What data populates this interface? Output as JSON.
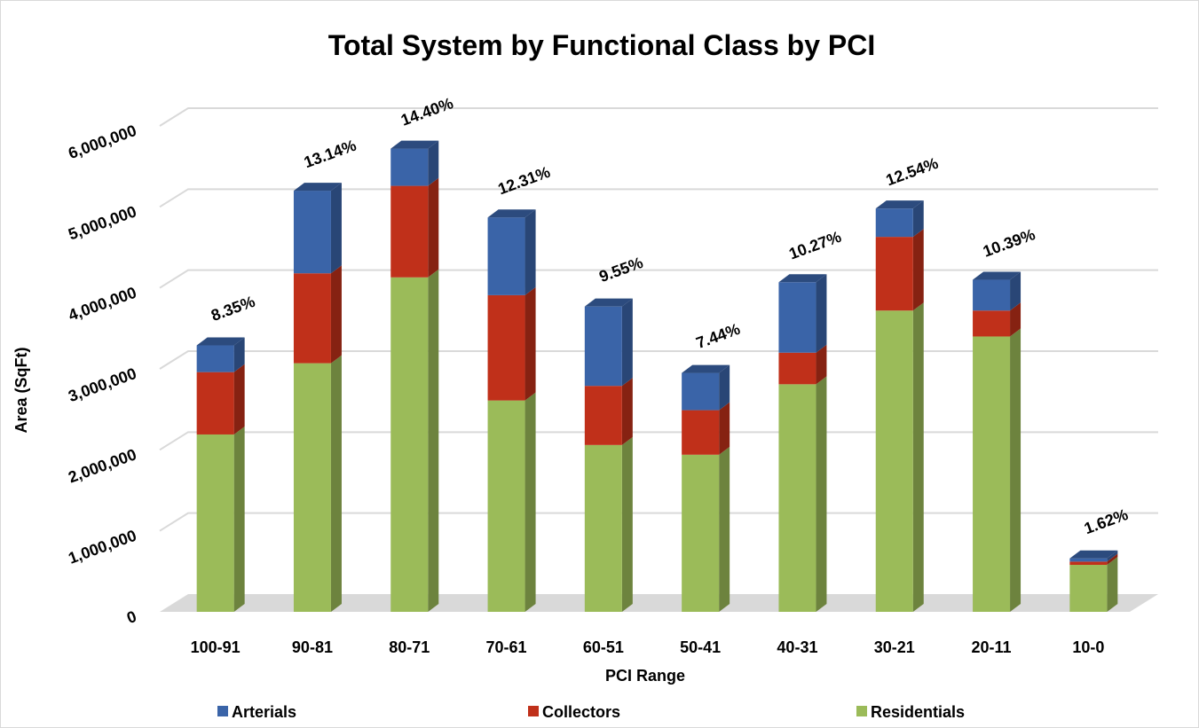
{
  "chart_data": {
    "type": "bar3d_stacked",
    "title": "Total System by Functional Class by PCI",
    "x_label": "PCI Range",
    "y_label": "Area (SqFt)",
    "categories": [
      "100-91",
      "90-81",
      "80-71",
      "70-61",
      "60-51",
      "50-41",
      "40-31",
      "30-21",
      "20-11",
      "10-0"
    ],
    "series": [
      {
        "name": "Residentials",
        "color": "#9bbb59",
        "values": [
          2190000,
          3070000,
          4130000,
          2610000,
          2060000,
          1940000,
          2810000,
          3720000,
          3400000,
          580000
        ]
      },
      {
        "name": "Collectors",
        "color": "#c0301a",
        "values": [
          770000,
          1110000,
          1130000,
          1300000,
          730000,
          550000,
          390000,
          910000,
          320000,
          40000
        ]
      },
      {
        "name": "Arterials",
        "color": "#3a64a8",
        "values": [
          330000,
          1020000,
          460000,
          960000,
          980000,
          460000,
          870000,
          350000,
          380000,
          40000
        ]
      }
    ],
    "legend_order": [
      "Arterials",
      "Collectors",
      "Residentials"
    ],
    "percent_labels": [
      "8.35%",
      "13.14%",
      "14.40%",
      "12.31%",
      "9.55%",
      "7.44%",
      "10.27%",
      "12.54%",
      "10.39%",
      "1.62%"
    ],
    "ylim": [
      0,
      6000000
    ],
    "yticks": [
      0,
      {
        "value": 1000000,
        "label": "1,000,000"
      },
      {
        "value": 2000000,
        "label": "2,000,000"
      },
      {
        "value": 3000000,
        "label": "3,000,000"
      },
      {
        "value": 4000000,
        "label": "4,000,000"
      },
      {
        "value": 5000000,
        "label": "5,000,000"
      },
      {
        "value": 6000000,
        "label": "6,000,000"
      }
    ],
    "grid": true,
    "legend": "bottom"
  }
}
